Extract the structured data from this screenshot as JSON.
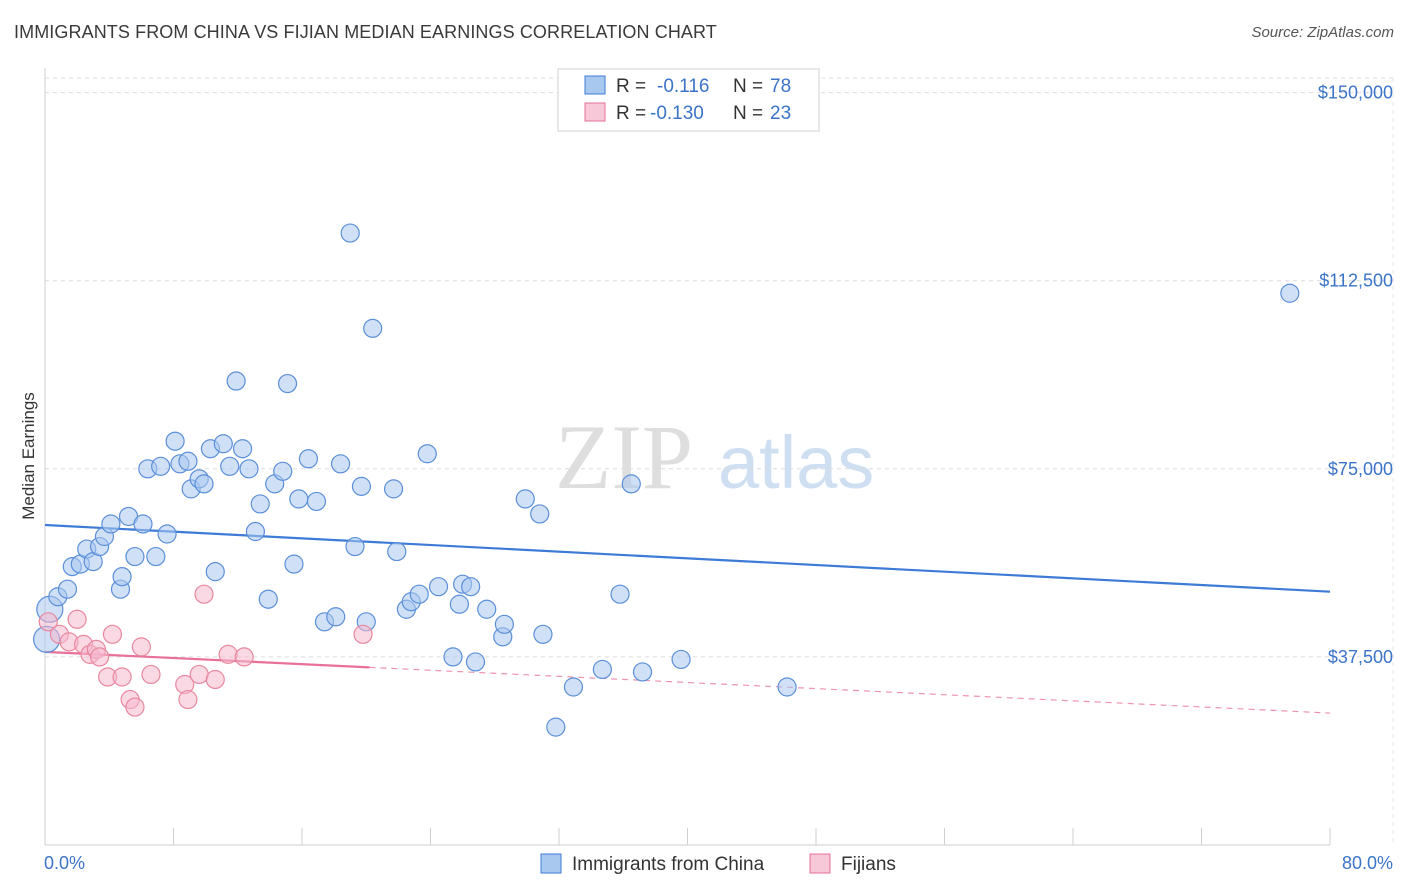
{
  "title": "IMMIGRANTS FROM CHINA VS FIJIAN MEDIAN EARNINGS CORRELATION CHART",
  "source": "Source: ZipAtlas.com",
  "watermark": {
    "zip": "ZIP",
    "atlas": "atlas"
  },
  "colors": {
    "blue": "#3d7bd6",
    "blue_fill": "#a9c8f0",
    "pink": "#e8709a",
    "pink_fill": "#f6b8cd",
    "tick": "#3b74c9",
    "grid": "#d8d8d8"
  },
  "legend": {
    "rows": [
      {
        "r_label": "R =",
        "r_value": "-0.116",
        "n_label": "N =",
        "n_value": "78"
      },
      {
        "r_label": "R =",
        "r_value": "-0.130",
        "n_label": "N =",
        "n_value": "23"
      }
    ]
  },
  "chart_data": {
    "type": "scatter",
    "title": "IMMIGRANTS FROM CHINA VS FIJIAN MEDIAN EARNINGS CORRELATION CHART",
    "xlabel": "",
    "ylabel": "Median Earnings",
    "xlim": [
      0,
      80
    ],
    "ylim": [
      0,
      157500
    ],
    "x_tick_labels": [
      "0.0%",
      "80.0%"
    ],
    "y_ticks": [
      37500,
      75000,
      112500,
      150000
    ],
    "y_tick_labels": [
      "$37,500",
      "$75,000",
      "$112,500",
      "$150,000"
    ],
    "legend_position": "top-center",
    "series": [
      {
        "name": "Immigrants from China",
        "color": "#3d7bd6",
        "regression": {
          "x": [
            0,
            80
          ],
          "y": [
            63800,
            50500
          ],
          "dashed_from": null
        },
        "points": [
          [
            0.1,
            41000
          ],
          [
            0.3,
            47000
          ],
          [
            0.8,
            49500
          ],
          [
            1.4,
            51000
          ],
          [
            1.7,
            55500
          ],
          [
            2.2,
            56000
          ],
          [
            2.6,
            59000
          ],
          [
            3.0,
            56500
          ],
          [
            3.4,
            59500
          ],
          [
            3.7,
            61500
          ],
          [
            4.1,
            64000
          ],
          [
            4.7,
            51000
          ],
          [
            4.8,
            53500
          ],
          [
            5.2,
            65500
          ],
          [
            5.6,
            57500
          ],
          [
            6.1,
            64000
          ],
          [
            6.4,
            75000
          ],
          [
            6.9,
            57500
          ],
          [
            7.2,
            75500
          ],
          [
            7.6,
            62000
          ],
          [
            8.1,
            80500
          ],
          [
            8.4,
            76000
          ],
          [
            8.9,
            76500
          ],
          [
            9.1,
            71000
          ],
          [
            9.6,
            73000
          ],
          [
            9.9,
            72000
          ],
          [
            10.3,
            79000
          ],
          [
            10.6,
            54500
          ],
          [
            11.1,
            80000
          ],
          [
            11.5,
            75500
          ],
          [
            11.9,
            92500
          ],
          [
            12.3,
            79000
          ],
          [
            12.7,
            75000
          ],
          [
            13.1,
            62500
          ],
          [
            13.4,
            68000
          ],
          [
            13.9,
            49000
          ],
          [
            14.3,
            72000
          ],
          [
            14.8,
            74500
          ],
          [
            15.1,
            92000
          ],
          [
            15.5,
            56000
          ],
          [
            15.8,
            69000
          ],
          [
            16.4,
            77000
          ],
          [
            16.9,
            68500
          ],
          [
            17.4,
            44500
          ],
          [
            18.1,
            45500
          ],
          [
            18.4,
            76000
          ],
          [
            19.0,
            122000
          ],
          [
            19.3,
            59500
          ],
          [
            19.7,
            71500
          ],
          [
            20.0,
            44500
          ],
          [
            20.4,
            103000
          ],
          [
            21.7,
            71000
          ],
          [
            21.9,
            58500
          ],
          [
            22.5,
            47000
          ],
          [
            22.8,
            48500
          ],
          [
            23.3,
            50000
          ],
          [
            23.8,
            78000
          ],
          [
            24.5,
            51500
          ],
          [
            25.4,
            37500
          ],
          [
            25.8,
            48000
          ],
          [
            26.0,
            52000
          ],
          [
            26.5,
            51500
          ],
          [
            26.8,
            36500
          ],
          [
            27.5,
            47000
          ],
          [
            28.5,
            41500
          ],
          [
            28.6,
            44000
          ],
          [
            29.9,
            69000
          ],
          [
            30.8,
            66000
          ],
          [
            31.0,
            42000
          ],
          [
            31.8,
            23500
          ],
          [
            32.9,
            31500
          ],
          [
            34.7,
            35000
          ],
          [
            35.8,
            50000
          ],
          [
            36.5,
            72000
          ],
          [
            37.2,
            34500
          ],
          [
            39.6,
            37000
          ],
          [
            46.2,
            31500
          ],
          [
            77.5,
            110000
          ]
        ]
      },
      {
        "name": "Fijians",
        "color": "#e8709a",
        "regression": {
          "x": [
            0,
            80
          ],
          "y": [
            38500,
            26300
          ],
          "solid_until_x": 20.2
        },
        "points": [
          [
            0.2,
            44500
          ],
          [
            0.9,
            42000
          ],
          [
            1.5,
            40500
          ],
          [
            2.0,
            45000
          ],
          [
            2.4,
            40000
          ],
          [
            2.8,
            38000
          ],
          [
            3.2,
            39000
          ],
          [
            3.4,
            37500
          ],
          [
            3.9,
            33500
          ],
          [
            4.2,
            42000
          ],
          [
            4.8,
            33500
          ],
          [
            5.3,
            29000
          ],
          [
            5.6,
            27500
          ],
          [
            6.0,
            39500
          ],
          [
            6.6,
            34000
          ],
          [
            8.7,
            32000
          ],
          [
            8.9,
            29000
          ],
          [
            9.6,
            34000
          ],
          [
            9.9,
            50000
          ],
          [
            10.6,
            33000
          ],
          [
            11.4,
            38000
          ],
          [
            12.4,
            37500
          ],
          [
            19.8,
            42000
          ]
        ]
      }
    ]
  },
  "bottom_legend": [
    {
      "label": "Immigrants from China"
    },
    {
      "label": "Fijians"
    }
  ]
}
